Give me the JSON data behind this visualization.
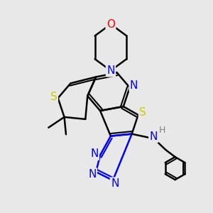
{
  "bg_color": "#e8e8e8",
  "line_color": "#000000",
  "bond_width": 1.8,
  "atom_colors": {
    "N": "#0000ff",
    "S": "#cccc00",
    "O": "#ff0000",
    "H": "#808080",
    "C": "#000000"
  },
  "font_size_atom": 11,
  "font_size_small": 9
}
